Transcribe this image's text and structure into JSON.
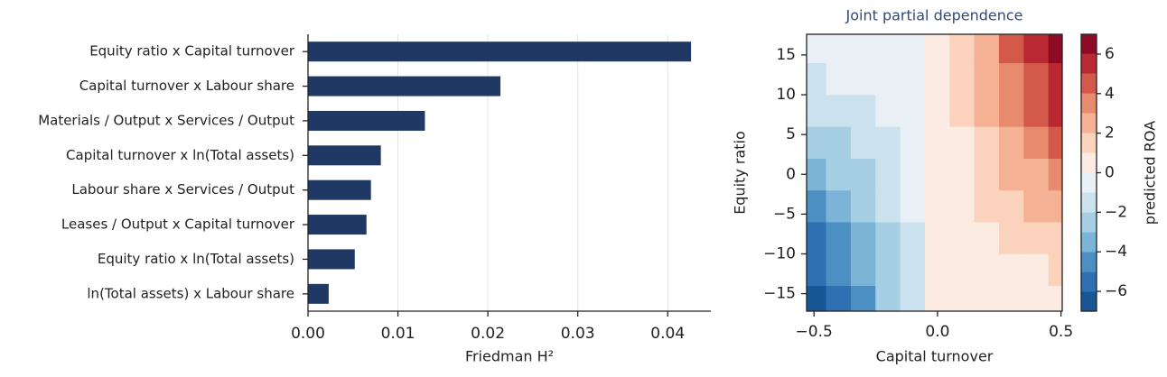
{
  "chart_data": [
    {
      "type": "bar",
      "orientation": "horizontal",
      "categories": [
        "Equity ratio x Capital turnover",
        "Capital turnover x Labour share",
        "Materials / Output x Services / Output",
        "Capital turnover x ln(Total assets)",
        "Labour share x Services / Output",
        "Leases / Output x Capital turnover",
        "Equity ratio x ln(Total assets)",
        "ln(Total assets) x Labour share"
      ],
      "values": [
        0.0426,
        0.0214,
        0.013,
        0.0081,
        0.007,
        0.0065,
        0.0052,
        0.0023
      ],
      "color": "#1f3864",
      "xlabel": "Friedman H²",
      "xlim": [
        0,
        0.0448
      ],
      "xticks": [
        {
          "value": 0,
          "label": "0.00"
        },
        {
          "value": 0.01,
          "label": "0.01"
        },
        {
          "value": 0.02,
          "label": "0.02"
        },
        {
          "value": 0.03,
          "label": "0.03"
        },
        {
          "value": 0.04,
          "label": "0.04"
        }
      ],
      "grid": true
    },
    {
      "type": "contour",
      "title": "Joint partial dependence",
      "xlabel": "Capital turnover",
      "ylabel": "Equity ratio",
      "x": [
        -0.5,
        -0.4,
        -0.3,
        -0.2,
        -0.1,
        0,
        0.1,
        0.2,
        0.3,
        0.4,
        0.5
      ],
      "y": [
        -16,
        -12,
        -8,
        -4,
        0,
        4,
        8,
        12,
        16
      ],
      "z": [
        [
          -6.7,
          -5.36,
          -4.02,
          -2.68,
          -1.34,
          0,
          0.06,
          0.12,
          0.18,
          0.24,
          0.3
        ],
        [
          -5.9,
          -4.72,
          -3.54,
          -2.36,
          -1.18,
          0,
          0.22,
          0.44,
          0.66,
          0.88,
          1.1
        ],
        [
          -5.1,
          -4.08,
          -3.06,
          -2.04,
          -1.02,
          0,
          0.38,
          0.76,
          1.14,
          1.52,
          1.9
        ],
        [
          -4.3,
          -3.44,
          -2.58,
          -1.72,
          -0.86,
          0,
          0.54,
          1.08,
          1.62,
          2.16,
          2.7
        ],
        [
          -3.5,
          -2.8,
          -2.1,
          -1.4,
          -0.7,
          0,
          0.7,
          1.4,
          2.1,
          2.8,
          3.5
        ],
        [
          -2.7,
          -2.16,
          -1.62,
          -1.08,
          -0.54,
          0,
          0.86,
          1.72,
          2.58,
          3.44,
          4.3
        ],
        [
          -1.9,
          -1.52,
          -1.14,
          -0.76,
          -0.38,
          0,
          1.02,
          2.04,
          3.06,
          4.08,
          5.1
        ],
        [
          -1.1,
          -0.88,
          -0.66,
          -0.44,
          -0.22,
          0,
          1.18,
          2.36,
          3.54,
          4.72,
          5.9
        ],
        [
          -0.3,
          -0.24,
          -0.18,
          -0.12,
          -0.06,
          0,
          1.34,
          2.68,
          4.02,
          5.36,
          6.7
        ]
      ],
      "xlim": [
        -0.53,
        0.505
      ],
      "ylim": [
        -17.2,
        17.6
      ],
      "xticks": [
        {
          "value": -0.5,
          "label": "−0.5"
        },
        {
          "value": 0,
          "label": "0.0"
        },
        0.5
      ],
      "yticks": [
        {
          "value": -15,
          "label": "−15"
        },
        {
          "value": -10,
          "label": "−10"
        },
        {
          "value": -5,
          "label": "−5"
        },
        0,
        5,
        10,
        15
      ],
      "levels": [
        -7,
        -6,
        -5,
        -4,
        -3,
        -2,
        -1,
        0,
        1,
        2,
        3,
        4,
        5,
        6,
        7
      ],
      "colors": [
        "#195696",
        "#2f70b2",
        "#4b8fc3",
        "#7cb4d7",
        "#a7cfe4",
        "#cbe1ee",
        "#e8eff5",
        "#fbebe3",
        "#fbd2bc",
        "#f5b193",
        "#e88a6d",
        "#d35a4a",
        "#ba2831",
        "#8e0b25"
      ],
      "colorbar_label": "predicted ROA",
      "colorbar_ticks": [
        {
          "value": -6,
          "label": "−6"
        },
        {
          "value": -4,
          "label": "−4"
        },
        {
          "value": -2,
          "label": "−2"
        },
        0,
        2,
        4,
        6
      ]
    }
  ]
}
